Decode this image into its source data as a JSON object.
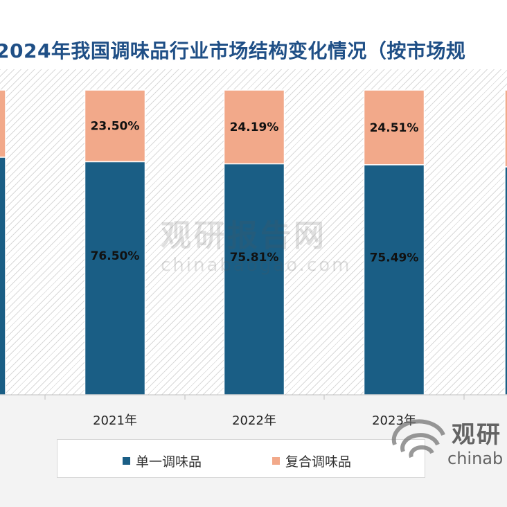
{
  "chart_data": {
    "type": "stacked-bar",
    "title": "2024年我国调味品行业市场结构变化情况（按市场规",
    "categories": [
      "2021年",
      "2022年",
      "2023年"
    ],
    "series": [
      {
        "name": "单一调味品",
        "color": "#1a5e85",
        "values": [
          76.5,
          75.81,
          75.49
        ],
        "labels": [
          "76.50%",
          "75.81%",
          "75.49%"
        ]
      },
      {
        "name": "复合调味品",
        "color": "#f2a98a",
        "values": [
          23.5,
          24.19,
          24.51
        ],
        "labels": [
          "23.50%",
          "24.19%",
          "24.51%"
        ]
      }
    ],
    "ylim": [
      0,
      100
    ],
    "legend_position": "bottom"
  },
  "watermark": {
    "cn": "观研报告网",
    "url": "chinabaogao.com",
    "corner_cn": "观研",
    "corner_url": "chinab"
  },
  "icons": [
    "watermark-logo-icon"
  ]
}
